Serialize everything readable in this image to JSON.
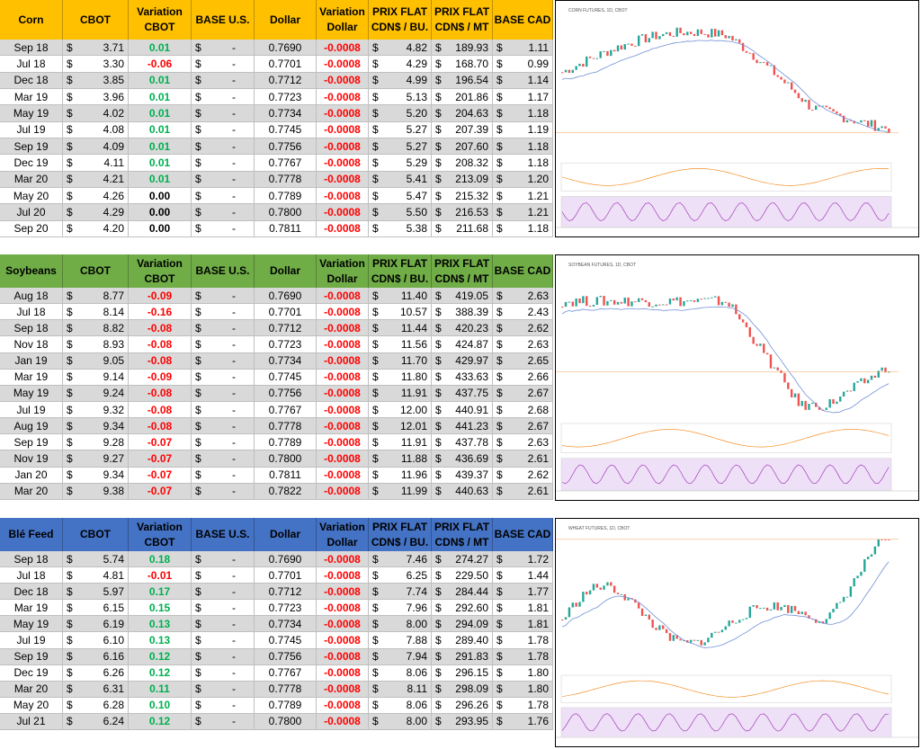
{
  "currency": "$",
  "base_us": "-",
  "columns": [
    [
      "CBOT"
    ],
    [
      "Variation",
      "CBOT"
    ],
    [
      "BASE U.S."
    ],
    [
      "Dollar"
    ],
    [
      "Variation",
      "Dollar"
    ],
    [
      "PRIX FLAT",
      "CDN$ / BU."
    ],
    [
      "PRIX FLAT",
      "CDN$ / MT"
    ],
    [
      "BASE CAD"
    ]
  ],
  "sections": [
    {
      "name": "Corn",
      "chart_title": "CORN FUTURES, 1D, CBOT",
      "rows": [
        [
          "Sep 18",
          "3.71",
          "0.01",
          "0.7690",
          "-0.0008",
          "4.82",
          "189.93",
          "1.11"
        ],
        [
          "Jul 18",
          "3.30",
          "-0.06",
          "0.7701",
          "-0.0008",
          "4.29",
          "168.70",
          "0.99"
        ],
        [
          "Dec 18",
          "3.85",
          "0.01",
          "0.7712",
          "-0.0008",
          "4.99",
          "196.54",
          "1.14"
        ],
        [
          "Mar 19",
          "3.96",
          "0.01",
          "0.7723",
          "-0.0008",
          "5.13",
          "201.86",
          "1.17"
        ],
        [
          "May 19",
          "4.02",
          "0.01",
          "0.7734",
          "-0.0008",
          "5.20",
          "204.63",
          "1.18"
        ],
        [
          "Jul 19",
          "4.08",
          "0.01",
          "0.7745",
          "-0.0008",
          "5.27",
          "207.39",
          "1.19"
        ],
        [
          "Sep 19",
          "4.09",
          "0.01",
          "0.7756",
          "-0.0008",
          "5.27",
          "207.60",
          "1.18"
        ],
        [
          "Dec 19",
          "4.11",
          "0.01",
          "0.7767",
          "-0.0008",
          "5.29",
          "208.32",
          "1.18"
        ],
        [
          "Mar 20",
          "4.21",
          "0.01",
          "0.7778",
          "-0.0008",
          "5.41",
          "213.09",
          "1.20"
        ],
        [
          "May 20",
          "4.26",
          "0.00",
          "0.7789",
          "-0.0008",
          "5.47",
          "215.32",
          "1.21"
        ],
        [
          "Jul 20",
          "4.29",
          "0.00",
          "0.7800",
          "-0.0008",
          "5.50",
          "216.53",
          "1.21"
        ],
        [
          "Sep 20",
          "4.20",
          "0.00",
          "0.7811",
          "-0.0008",
          "5.38",
          "211.68",
          "1.18"
        ]
      ]
    },
    {
      "name": "Soybeans",
      "chart_title": "SOYBEAN FUTURES, 1D, CBOT",
      "rows": [
        [
          "Aug 18",
          "8.77",
          "-0.09",
          "0.7690",
          "-0.0008",
          "11.40",
          "419.05",
          "2.63"
        ],
        [
          "Jul 18",
          "8.14",
          "-0.16",
          "0.7701",
          "-0.0008",
          "10.57",
          "388.39",
          "2.43"
        ],
        [
          "Sep 18",
          "8.82",
          "-0.08",
          "0.7712",
          "-0.0008",
          "11.44",
          "420.23",
          "2.62"
        ],
        [
          "Nov 18",
          "8.93",
          "-0.08",
          "0.7723",
          "-0.0008",
          "11.56",
          "424.87",
          "2.63"
        ],
        [
          "Jan 19",
          "9.05",
          "-0.08",
          "0.7734",
          "-0.0008",
          "11.70",
          "429.97",
          "2.65"
        ],
        [
          "Mar 19",
          "9.14",
          "-0.09",
          "0.7745",
          "-0.0008",
          "11.80",
          "433.63",
          "2.66"
        ],
        [
          "May 19",
          "9.24",
          "-0.08",
          "0.7756",
          "-0.0008",
          "11.91",
          "437.75",
          "2.67"
        ],
        [
          "Jul 19",
          "9.32",
          "-0.08",
          "0.7767",
          "-0.0008",
          "12.00",
          "440.91",
          "2.68"
        ],
        [
          "Aug 19",
          "9.34",
          "-0.08",
          "0.7778",
          "-0.0008",
          "12.01",
          "441.23",
          "2.67"
        ],
        [
          "Sep 19",
          "9.28",
          "-0.07",
          "0.7789",
          "-0.0008",
          "11.91",
          "437.78",
          "2.63"
        ],
        [
          "Nov 19",
          "9.27",
          "-0.07",
          "0.7800",
          "-0.0008",
          "11.88",
          "436.69",
          "2.61"
        ],
        [
          "Jan 20",
          "9.34",
          "-0.07",
          "0.7811",
          "-0.0008",
          "11.96",
          "439.37",
          "2.62"
        ],
        [
          "Mar 20",
          "9.38",
          "-0.07",
          "0.7822",
          "-0.0008",
          "11.99",
          "440.63",
          "2.61"
        ]
      ]
    },
    {
      "name": "Blé Feed",
      "chart_title": "WHEAT FUTURES, 1D, CBOT",
      "rows": [
        [
          "Sep 18",
          "5.74",
          "0.18",
          "0.7690",
          "-0.0008",
          "7.46",
          "274.27",
          "1.72"
        ],
        [
          "Jul 18",
          "4.81",
          "-0.01",
          "0.7701",
          "-0.0008",
          "6.25",
          "229.50",
          "1.44"
        ],
        [
          "Dec 18",
          "5.97",
          "0.17",
          "0.7712",
          "-0.0008",
          "7.74",
          "284.44",
          "1.77"
        ],
        [
          "Mar 19",
          "6.15",
          "0.15",
          "0.7723",
          "-0.0008",
          "7.96",
          "292.60",
          "1.81"
        ],
        [
          "May 19",
          "6.19",
          "0.13",
          "0.7734",
          "-0.0008",
          "8.00",
          "294.09",
          "1.81"
        ],
        [
          "Jul 19",
          "6.10",
          "0.13",
          "0.7745",
          "-0.0008",
          "7.88",
          "289.40",
          "1.78"
        ],
        [
          "Sep 19",
          "6.16",
          "0.12",
          "0.7756",
          "-0.0008",
          "7.94",
          "291.83",
          "1.78"
        ],
        [
          "Dec 19",
          "6.26",
          "0.12",
          "0.7767",
          "-0.0008",
          "8.06",
          "296.15",
          "1.80"
        ],
        [
          "Mar 20",
          "6.31",
          "0.11",
          "0.7778",
          "-0.0008",
          "8.11",
          "298.09",
          "1.80"
        ],
        [
          "May 20",
          "6.28",
          "0.10",
          "0.7789",
          "-0.0008",
          "8.06",
          "296.26",
          "1.78"
        ],
        [
          "Jul 21",
          "6.24",
          "0.12",
          "0.7800",
          "-0.0008",
          "8.00",
          "293.95",
          "1.76"
        ]
      ]
    }
  ]
}
